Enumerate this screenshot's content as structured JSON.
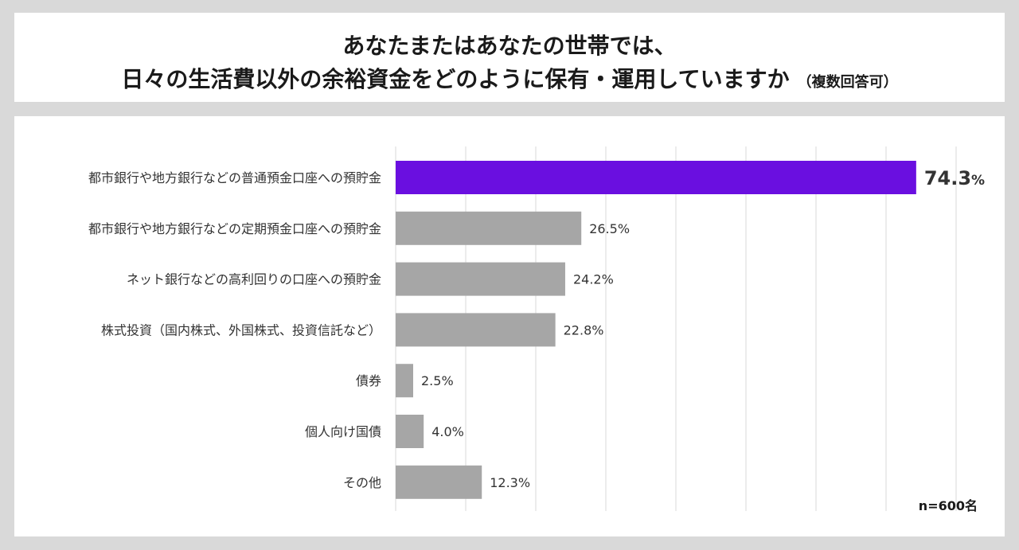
{
  "title": {
    "line1": "あなたまたはあなたの世帯では、",
    "line2": "日々の生活費以外の余裕資金をどのように保有・運用していますか",
    "note": "（複数回答可）"
  },
  "chart_data": {
    "type": "bar",
    "orientation": "horizontal",
    "categories": [
      "都市銀行や地方銀行などの普通預金口座への預貯金",
      "都市銀行や地方銀行などの定期預金口座への預貯金",
      "ネット銀行などの高利回りの口座への預貯金",
      "株式投資（国内株式、外国株式、投資信託など）",
      "債券",
      "個人向け国債",
      "その他"
    ],
    "values": [
      74.3,
      26.5,
      24.2,
      22.8,
      2.5,
      4.0,
      12.3
    ],
    "value_labels": [
      "74.3",
      "26.5",
      "24.2",
      "22.8",
      "2.5",
      "4.0",
      "12.3"
    ],
    "unit": "%",
    "xlim": [
      0,
      80
    ],
    "grid": true,
    "highlight_index": 0,
    "colors": {
      "highlight": "#6a0fe0",
      "default": "#a6a6a6",
      "grid": "#d9d9d9"
    },
    "sample_note": "n=600名"
  }
}
